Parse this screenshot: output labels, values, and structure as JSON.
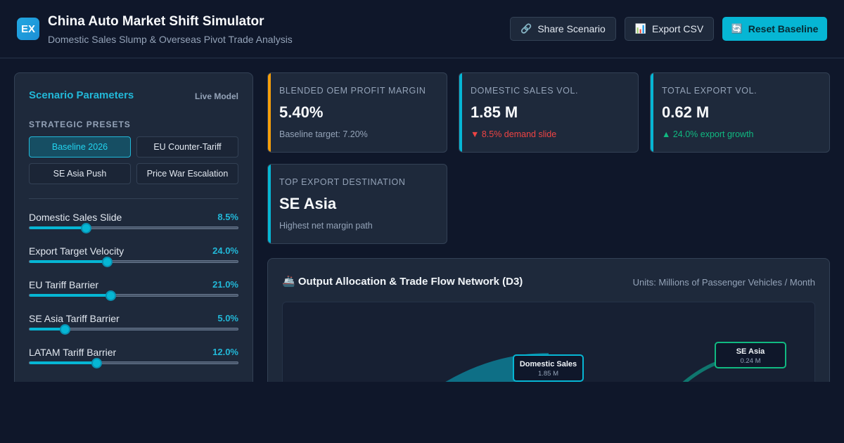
{
  "header": {
    "logo_text": "EX",
    "title": "China Auto Market Shift Simulator",
    "subtitle": "Domestic Sales Slump & Overseas Pivot Trade Analysis",
    "buttons": {
      "share": {
        "icon": "🔗",
        "label": "Share Scenario"
      },
      "export": {
        "icon": "📊",
        "label": "Export CSV"
      },
      "reset": {
        "icon": "🔄",
        "label": "Reset Baseline"
      }
    }
  },
  "panel": {
    "title": "Scenario Parameters",
    "badge": "Live Model",
    "presets_label": "STRATEGIC PRESETS",
    "presets": [
      {
        "label": "Baseline 2026",
        "active": true
      },
      {
        "label": "EU Counter-Tariff",
        "active": false
      },
      {
        "label": "SE Asia Push",
        "active": false
      },
      {
        "label": "Price War Escalation",
        "active": false
      }
    ],
    "sliders": [
      {
        "label": "Domestic Sales Slide",
        "value": "8.5%",
        "level": 0.27
      },
      {
        "label": "Export Target Velocity",
        "value": "24.0%",
        "level": 0.37
      },
      {
        "label": "EU Tariff Barrier",
        "value": "21.0%",
        "level": 0.39
      },
      {
        "label": "SE Asia Tariff Barrier",
        "value": "5.0%",
        "level": 0.17
      },
      {
        "label": "LATAM Tariff Barrier",
        "value": "12.0%",
        "level": 0.32
      }
    ]
  },
  "kpis": [
    {
      "label": "BLENDED OEM PROFIT MARGIN",
      "value": "5.40%",
      "sub": "Baseline target: 7.20%",
      "trend": "neutral",
      "accent": "#f59e0b"
    },
    {
      "label": "DOMESTIC SALES VOL.",
      "value": "1.85 M",
      "sub": "▼ 8.5% demand slide",
      "trend": "down",
      "accent": "#06b6d4"
    },
    {
      "label": "TOTAL EXPORT VOL.",
      "value": "0.62 M",
      "sub": "▲ 24.0% export growth",
      "trend": "up",
      "accent": "#06b6d4"
    },
    {
      "label": "TOP EXPORT DESTINATION",
      "value": "SE Asia",
      "sub": "Highest net margin path",
      "trend": "neutral",
      "accent": "#06b6d4"
    }
  ],
  "network": {
    "title": "🚢 Output Allocation & Trade Flow Network (D3)",
    "units": "Units: Millions of Passenger Vehicles / Month",
    "nodes": [
      {
        "name": "Domestic Sales",
        "value": "1.85 M",
        "color": "#06b6d4"
      },
      {
        "name": "SE Asia",
        "value": "0.24 M",
        "color": "#10b981"
      }
    ]
  }
}
